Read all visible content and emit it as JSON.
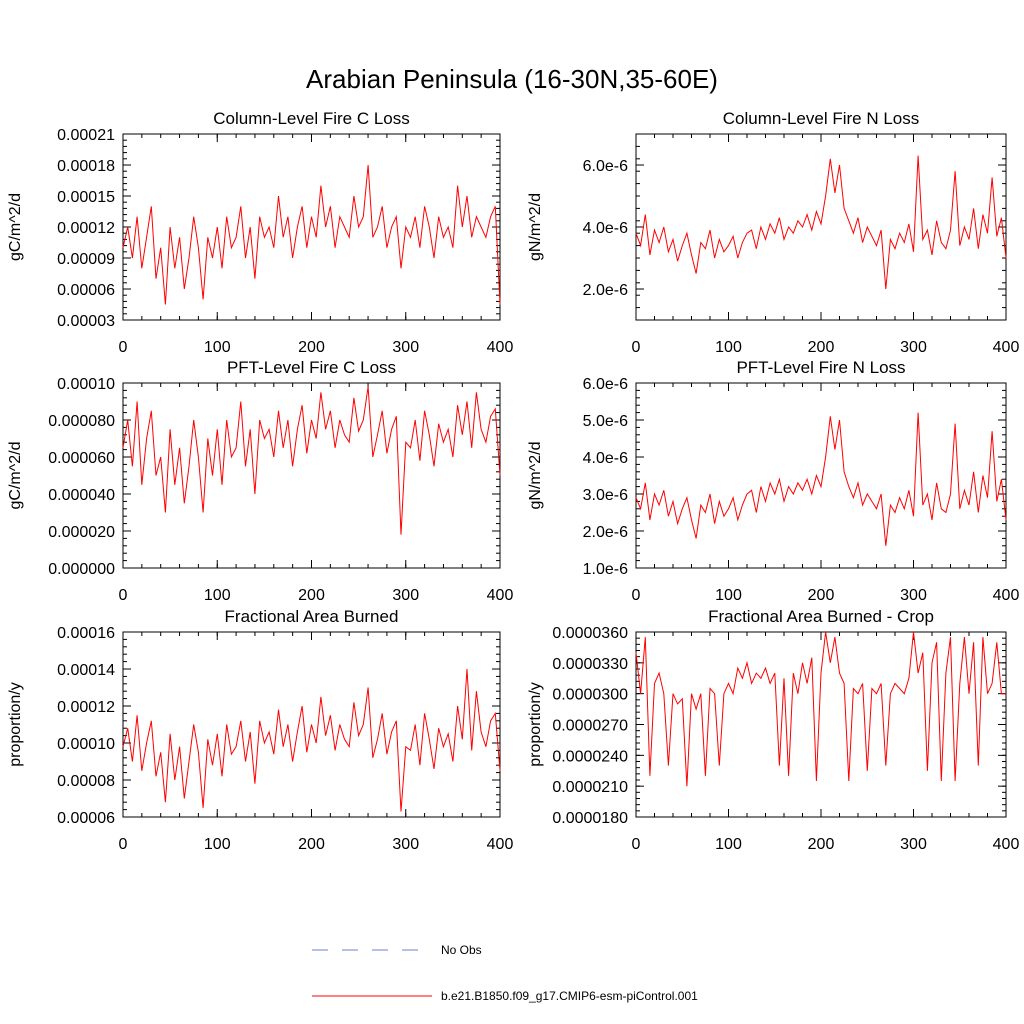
{
  "figure_title": "Arabian Peninsula (16-30N,35-60E)",
  "legend": {
    "no_obs_label": "No Obs",
    "model_label": "b.e21.B1850.f09_g17.CMIP6-esm-piControl.001",
    "no_obs_color": "#6d7fd6",
    "model_color": "#ff0000"
  },
  "chart_data": [
    {
      "type": "line",
      "title": "Column-Level Fire C Loss",
      "ylabel": "gC/m^2/d",
      "xlim": [
        0,
        400
      ],
      "ylim": [
        3e-05,
        0.00021
      ],
      "yticks": [
        3e-05,
        6e-05,
        9e-05,
        0.00012,
        0.00015,
        0.00018,
        0.00021
      ],
      "ytick_labels": [
        "0.00003",
        "0.00006",
        "0.00009",
        "0.00012",
        "0.00015",
        "0.00018",
        "0.00021"
      ],
      "xticks": [
        0,
        100,
        200,
        300,
        400
      ],
      "xtick_labels": [
        "0",
        "100",
        "200",
        "300",
        "400"
      ],
      "series": [
        {
          "name": "b.e21.B1850.f09_g17.CMIP6-esm-piControl.001",
          "sample_step_years": 5,
          "values": [
            0.0001,
            0.00012,
            9e-05,
            0.00013,
            8e-05,
            0.00011,
            0.00014,
            7e-05,
            0.0001,
            4.5e-05,
            0.00012,
            8e-05,
            0.00011,
            6e-05,
            9e-05,
            0.00013,
            0.0001,
            5e-05,
            0.00011,
            9e-05,
            0.00012,
            8e-05,
            0.00013,
            0.0001,
            0.00011,
            0.00014,
            9e-05,
            0.00012,
            7e-05,
            0.00013,
            0.00011,
            0.00012,
            0.0001,
            0.00015,
            0.00011,
            0.00013,
            9e-05,
            0.00012,
            0.00014,
            0.0001,
            0.00013,
            0.00011,
            0.00016,
            0.00012,
            0.00014,
            0.0001,
            0.00013,
            0.00012,
            0.00011,
            0.00015,
            0.00012,
            0.00013,
            0.00018,
            0.00011,
            0.00012,
            0.00014,
            0.0001,
            0.00012,
            0.00013,
            8e-05,
            0.00012,
            0.00011,
            0.00013,
            0.0001,
            0.00014,
            0.00012,
            9e-05,
            0.00013,
            0.00011,
            0.00012,
            0.0001,
            0.00016,
            0.00012,
            0.00015,
            0.00011,
            0.00013,
            0.00012,
            0.00011,
            0.00013,
            0.00014,
            4.5e-05
          ]
        }
      ]
    },
    {
      "type": "line",
      "title": "Column-Level Fire N Loss",
      "ylabel": "gN/m^2/d",
      "xlim": [
        0,
        400
      ],
      "ylim": [
        1e-06,
        7e-06
      ],
      "yticks": [
        2e-06,
        4e-06,
        6e-06
      ],
      "ytick_labels": [
        "2.0e-6",
        "4.0e-6",
        "6.0e-6"
      ],
      "xticks": [
        0,
        100,
        200,
        300,
        400
      ],
      "xtick_labels": [
        "0",
        "100",
        "200",
        "300",
        "400"
      ],
      "series": [
        {
          "name": "b.e21.B1850.f09_g17.CMIP6-esm-piControl.001",
          "sample_step_years": 5,
          "values": [
            3.8e-06,
            3.4e-06,
            4.4e-06,
            3.1e-06,
            3.9e-06,
            3.5e-06,
            4e-06,
            3.2e-06,
            3.6e-06,
            2.9e-06,
            3.4e-06,
            3.8e-06,
            3.1e-06,
            2.5e-06,
            3.5e-06,
            3.3e-06,
            3.9e-06,
            3e-06,
            3.6e-06,
            3.2e-06,
            3.4e-06,
            3.7e-06,
            3e-06,
            3.5e-06,
            3.8e-06,
            3.9e-06,
            3.3e-06,
            4e-06,
            3.6e-06,
            4.1e-06,
            3.8e-06,
            4.3e-06,
            3.6e-06,
            4e-06,
            3.8e-06,
            4.2e-06,
            4e-06,
            4.4e-06,
            3.9e-06,
            4.5e-06,
            4.1e-06,
            5e-06,
            6.2e-06,
            5.1e-06,
            6e-06,
            4.6e-06,
            4.2e-06,
            3.8e-06,
            4.3e-06,
            3.5e-06,
            4e-06,
            3.7e-06,
            3.4e-06,
            3.9e-06,
            2e-06,
            3.6e-06,
            3.3e-06,
            3.8e-06,
            3.5e-06,
            4.1e-06,
            3.2e-06,
            6.3e-06,
            3.6e-06,
            3.9e-06,
            3.1e-06,
            4.2e-06,
            3.5e-06,
            3.3e-06,
            3.9e-06,
            5.8e-06,
            3.4e-06,
            4e-06,
            3.6e-06,
            4.6e-06,
            3.3e-06,
            4.4e-06,
            3.8e-06,
            5.6e-06,
            3.7e-06,
            4.3e-06,
            3e-06
          ]
        }
      ]
    },
    {
      "type": "line",
      "title": "PFT-Level Fire C Loss",
      "ylabel": "gC/m^2/d",
      "xlim": [
        0,
        400
      ],
      "ylim": [
        0.0,
        0.0001
      ],
      "yticks": [
        0.0,
        2e-05,
        4e-05,
        6e-05,
        8e-05,
        0.0001
      ],
      "ytick_labels": [
        "0.000000",
        "0.000020",
        "0.000040",
        "0.000060",
        "0.000080",
        "0.00010"
      ],
      "xticks": [
        0,
        100,
        200,
        300,
        400
      ],
      "xtick_labels": [
        "0",
        "100",
        "200",
        "300",
        "400"
      ],
      "series": [
        {
          "name": "b.e21.B1850.f09_g17.CMIP6-esm-piControl.001",
          "sample_step_years": 5,
          "values": [
            6.5e-05,
            8e-05,
            5.5e-05,
            9e-05,
            4.5e-05,
            7e-05,
            8.5e-05,
            5e-05,
            6e-05,
            3e-05,
            7.5e-05,
            4.5e-05,
            6.5e-05,
            3.5e-05,
            5.5e-05,
            8e-05,
            6e-05,
            3e-05,
            7e-05,
            5e-05,
            7.5e-05,
            4.5e-05,
            8e-05,
            6e-05,
            6.5e-05,
            9e-05,
            5.5e-05,
            7.5e-05,
            4e-05,
            8e-05,
            7e-05,
            7.5e-05,
            6e-05,
            8.5e-05,
            6.5e-05,
            8e-05,
            5.5e-05,
            7.5e-05,
            8.8e-05,
            6.2e-05,
            8e-05,
            7e-05,
            9.5e-05,
            7.5e-05,
            8.5e-05,
            6.5e-05,
            8e-05,
            7.2e-05,
            6.8e-05,
            9.2e-05,
            7.4e-05,
            8e-05,
            9.8e-05,
            6e-05,
            7.2e-05,
            8.5e-05,
            6.2e-05,
            7.5e-05,
            8.2e-05,
            1.8e-05,
            6.8e-05,
            6.5e-05,
            8e-05,
            5.8e-05,
            8.5e-05,
            7.2e-05,
            5.5e-05,
            7.8e-05,
            6.8e-05,
            7.5e-05,
            6e-05,
            8.8e-05,
            7.2e-05,
            9e-05,
            6.5e-05,
            9.5e-05,
            7.5e-05,
            6.8e-05,
            8.2e-05,
            8.6e-05,
            5e-05
          ]
        }
      ]
    },
    {
      "type": "line",
      "title": "PFT-Level Fire N Loss",
      "ylabel": "gN/m^2/d",
      "xlim": [
        0,
        400
      ],
      "ylim": [
        1e-06,
        6e-06
      ],
      "yticks": [
        1e-06,
        2e-06,
        3e-06,
        4e-06,
        5e-06,
        6e-06
      ],
      "ytick_labels": [
        "1.0e-6",
        "2.0e-6",
        "3.0e-6",
        "4.0e-6",
        "5.0e-6",
        "6.0e-6"
      ],
      "xticks": [
        0,
        100,
        200,
        300,
        400
      ],
      "xtick_labels": [
        "0",
        "100",
        "200",
        "300",
        "400"
      ],
      "series": [
        {
          "name": "b.e21.B1850.f09_g17.CMIP6-esm-piControl.001",
          "sample_step_years": 5,
          "values": [
            2.9e-06,
            2.6e-06,
            3.3e-06,
            2.3e-06,
            3e-06,
            2.7e-06,
            3.1e-06,
            2.4e-06,
            2.8e-06,
            2.2e-06,
            2.6e-06,
            2.9e-06,
            2.3e-06,
            1.8e-06,
            2.7e-06,
            2.5e-06,
            3e-06,
            2.2e-06,
            2.8e-06,
            2.4e-06,
            2.6e-06,
            2.9e-06,
            2.3e-06,
            2.7e-06,
            3e-06,
            3.1e-06,
            2.5e-06,
            3.2e-06,
            2.8e-06,
            3.3e-06,
            3e-06,
            3.4e-06,
            2.8e-06,
            3.2e-06,
            3e-06,
            3.3e-06,
            3.1e-06,
            3.4e-06,
            3e-06,
            3.5e-06,
            3.2e-06,
            4e-06,
            5.1e-06,
            4.2e-06,
            5e-06,
            3.6e-06,
            3.2e-06,
            2.9e-06,
            3.3e-06,
            2.7e-06,
            3e-06,
            2.8e-06,
            2.6e-06,
            3e-06,
            1.6e-06,
            2.7e-06,
            2.5e-06,
            2.9e-06,
            2.6e-06,
            3.1e-06,
            2.4e-06,
            5.2e-06,
            2.7e-06,
            3e-06,
            2.3e-06,
            3.3e-06,
            2.6e-06,
            2.5e-06,
            3e-06,
            4.9e-06,
            2.6e-06,
            3.1e-06,
            2.7e-06,
            3.6e-06,
            2.5e-06,
            3.5e-06,
            2.9e-06,
            4.7e-06,
            2.8e-06,
            3.4e-06,
            2.3e-06
          ]
        }
      ]
    },
    {
      "type": "line",
      "title": "Fractional Area Burned",
      "ylabel": "proportion/y",
      "xlim": [
        0,
        400
      ],
      "ylim": [
        6e-05,
        0.00016
      ],
      "yticks": [
        6e-05,
        8e-05,
        0.0001,
        0.00012,
        0.00014,
        0.00016
      ],
      "ytick_labels": [
        "0.00006",
        "0.00008",
        "0.00010",
        "0.00012",
        "0.00014",
        "0.00016"
      ],
      "xticks": [
        0,
        100,
        200,
        300,
        400
      ],
      "xtick_labels": [
        "0",
        "100",
        "200",
        "300",
        "400"
      ],
      "series": [
        {
          "name": "b.e21.B1850.f09_g17.CMIP6-esm-piControl.001",
          "sample_step_years": 5,
          "values": [
            9.8e-05,
            0.000108,
            9e-05,
            0.000115,
            8.5e-05,
            0.0001,
            0.000112,
            8.2e-05,
            9.5e-05,
            6.8e-05,
            0.000105,
            8e-05,
            9.8e-05,
            7e-05,
            9e-05,
            0.00011,
            9.5e-05,
            6.5e-05,
            0.000102,
            8.8e-05,
            0.000105,
            8.2e-05,
            0.00011,
            9.4e-05,
            9.8e-05,
            0.000112,
            9e-05,
            0.000106,
            7.8e-05,
            0.000112,
            0.0001,
            0.000106,
            9.4e-05,
            0.000118,
            9.8e-05,
            0.00011,
            9e-05,
            0.000106,
            0.00012,
            9.5e-05,
            0.00011,
            0.0001,
            0.000125,
            0.000104,
            0.000115,
            9.6e-05,
            0.00011,
            0.000102,
            9.8e-05,
            0.000122,
            0.000104,
            0.00011,
            0.00013,
            9.2e-05,
            0.000102,
            0.000116,
            9.4e-05,
            0.000106,
            0.000112,
            6.3e-05,
            9.8e-05,
            9.6e-05,
            0.00011,
            8.8e-05,
            0.000116,
            0.000102,
            8.6e-05,
            0.000108,
            9.8e-05,
            0.000105,
            9e-05,
            0.00012,
            0.000102,
            0.00014,
            9.6e-05,
            0.000128,
            0.000106,
            9.8e-05,
            0.000112,
            0.000116,
            8.5e-05
          ]
        }
      ]
    },
    {
      "type": "line",
      "title": "Fractional Area Burned - Crop",
      "ylabel": "proportion/y",
      "xlim": [
        0,
        400
      ],
      "ylim": [
        1.8e-05,
        3.6e-05
      ],
      "yticks": [
        1.8e-05,
        2.1e-05,
        2.4e-05,
        2.7e-05,
        3e-05,
        3.3e-05,
        3.6e-05
      ],
      "ytick_labels": [
        "0.0000180",
        "0.0000210",
        "0.0000240",
        "0.0000270",
        "0.0000300",
        "0.0000330",
        "0.0000360"
      ],
      "xticks": [
        0,
        100,
        200,
        300,
        400
      ],
      "xtick_labels": [
        "0",
        "100",
        "200",
        "300",
        "400"
      ],
      "series": [
        {
          "name": "b.e21.B1850.f09_g17.CMIP6-esm-piControl.001",
          "sample_step_years": 5,
          "values": [
            3.4e-05,
            3e-05,
            3.55e-05,
            2.2e-05,
            3.1e-05,
            3.2e-05,
            3e-05,
            2.3e-05,
            3e-05,
            2.9e-05,
            2.95e-05,
            2.1e-05,
            3e-05,
            2.85e-05,
            3e-05,
            2.2e-05,
            3.05e-05,
            3e-05,
            2.3e-05,
            3e-05,
            3.1e-05,
            3e-05,
            3.25e-05,
            3.15e-05,
            3.3e-05,
            3.1e-05,
            3.2e-05,
            3.15e-05,
            3.25e-05,
            3.1e-05,
            3.2e-05,
            2.3e-05,
            3.15e-05,
            2.2e-05,
            3.2e-05,
            3e-05,
            3.3e-05,
            3.1e-05,
            3.35e-05,
            2.15e-05,
            3.2e-05,
            3.6e-05,
            3.3e-05,
            3.55e-05,
            3.2e-05,
            3.1e-05,
            2.15e-05,
            3.05e-05,
            3e-05,
            3.1e-05,
            2.25e-05,
            3.05e-05,
            3e-05,
            3.1e-05,
            2.3e-05,
            3e-05,
            3.1e-05,
            3.05e-05,
            3e-05,
            3.15e-05,
            3.6e-05,
            3.2e-05,
            3.4e-05,
            2.25e-05,
            3.3e-05,
            3.5e-05,
            2.15e-05,
            3.2e-05,
            3.55e-05,
            2.15e-05,
            3.1e-05,
            3.55e-05,
            3e-05,
            3.5e-05,
            2.3e-05,
            3.55e-05,
            3e-05,
            3.1e-05,
            3.5e-05,
            3e-05,
            3e-05
          ]
        }
      ]
    }
  ]
}
